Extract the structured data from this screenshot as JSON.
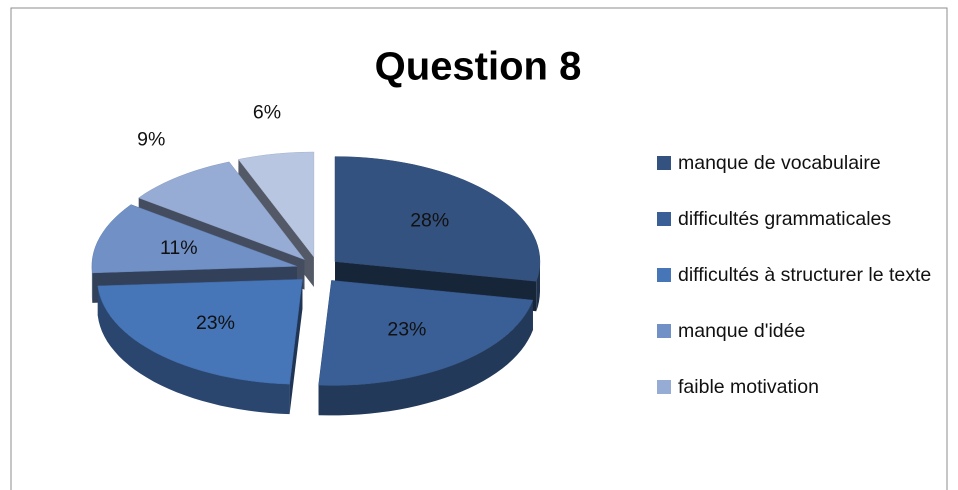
{
  "chart_data": {
    "type": "pie3d",
    "title": "Question 8",
    "categories": [
      "manque de vocabulaire",
      "difficultés grammaticales",
      "difficultés à structurer le texte",
      "manque d'idée",
      "faible motivation",
      null
    ],
    "values": [
      28,
      23,
      23,
      11,
      9,
      6
    ],
    "value_labels": [
      "28%",
      "23%",
      "23%",
      "11%",
      "9%",
      "6%"
    ],
    "colors": [
      "#34527f",
      "#3a5f96",
      "#4675b8",
      "#7090c6",
      "#97acd5",
      "#b8c6e2"
    ],
    "legend": "right"
  }
}
